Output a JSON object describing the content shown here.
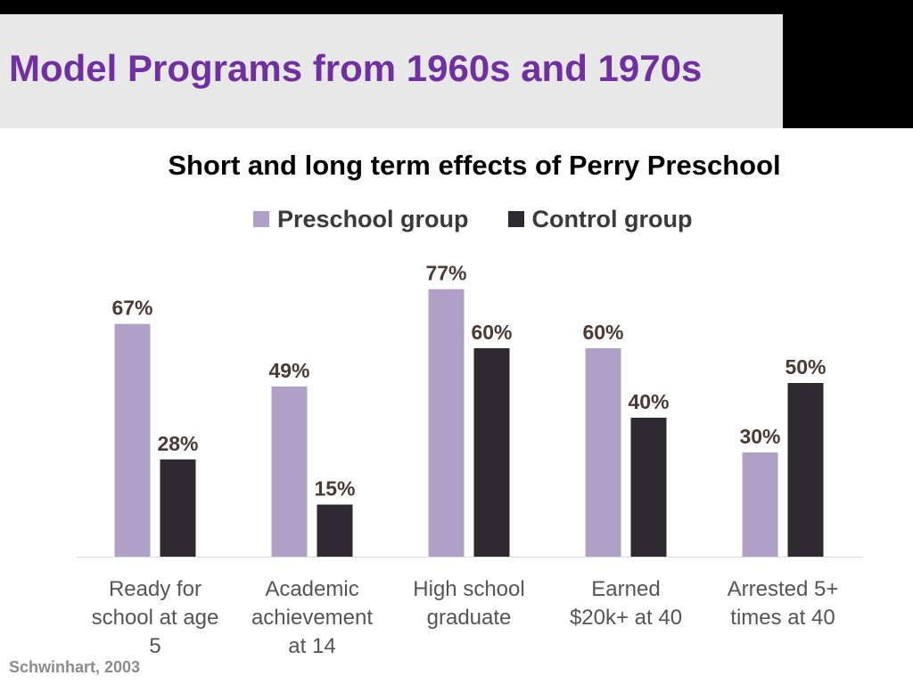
{
  "slide": {
    "title": "Model Programs from 1960s and 1970s",
    "footer": "Schwinhart, 2003"
  },
  "chart_data": {
    "type": "bar",
    "title": "Short and long term effects of Perry Preschool",
    "categories": [
      "Ready for school at age 5",
      "Academic achievement at 14",
      "High school graduate",
      "Earned $20k+ at 40",
      "Arrested 5+ times at 40"
    ],
    "category_lines": [
      [
        "Ready for",
        "school at age",
        "5"
      ],
      [
        "Academic",
        "achievement",
        "at 14"
      ],
      [
        "High school",
        "graduate"
      ],
      [
        "Earned",
        "$20k+ at 40"
      ],
      [
        "Arrested 5+",
        "times at 40"
      ]
    ],
    "series": [
      {
        "name": "Preschool group",
        "color": "#b0a0c8",
        "values": [
          67,
          49,
          77,
          60,
          30
        ],
        "labels": [
          "67%",
          "49%",
          "77%",
          "60%",
          "30%"
        ]
      },
      {
        "name": "Control group",
        "color": "#2d2a32",
        "values": [
          28,
          15,
          60,
          40,
          50
        ],
        "labels": [
          "28%",
          "15%",
          "60%",
          "40%",
          "50%"
        ]
      }
    ],
    "ylim": [
      0,
      100
    ],
    "grid": false,
    "legend_position": "top"
  }
}
